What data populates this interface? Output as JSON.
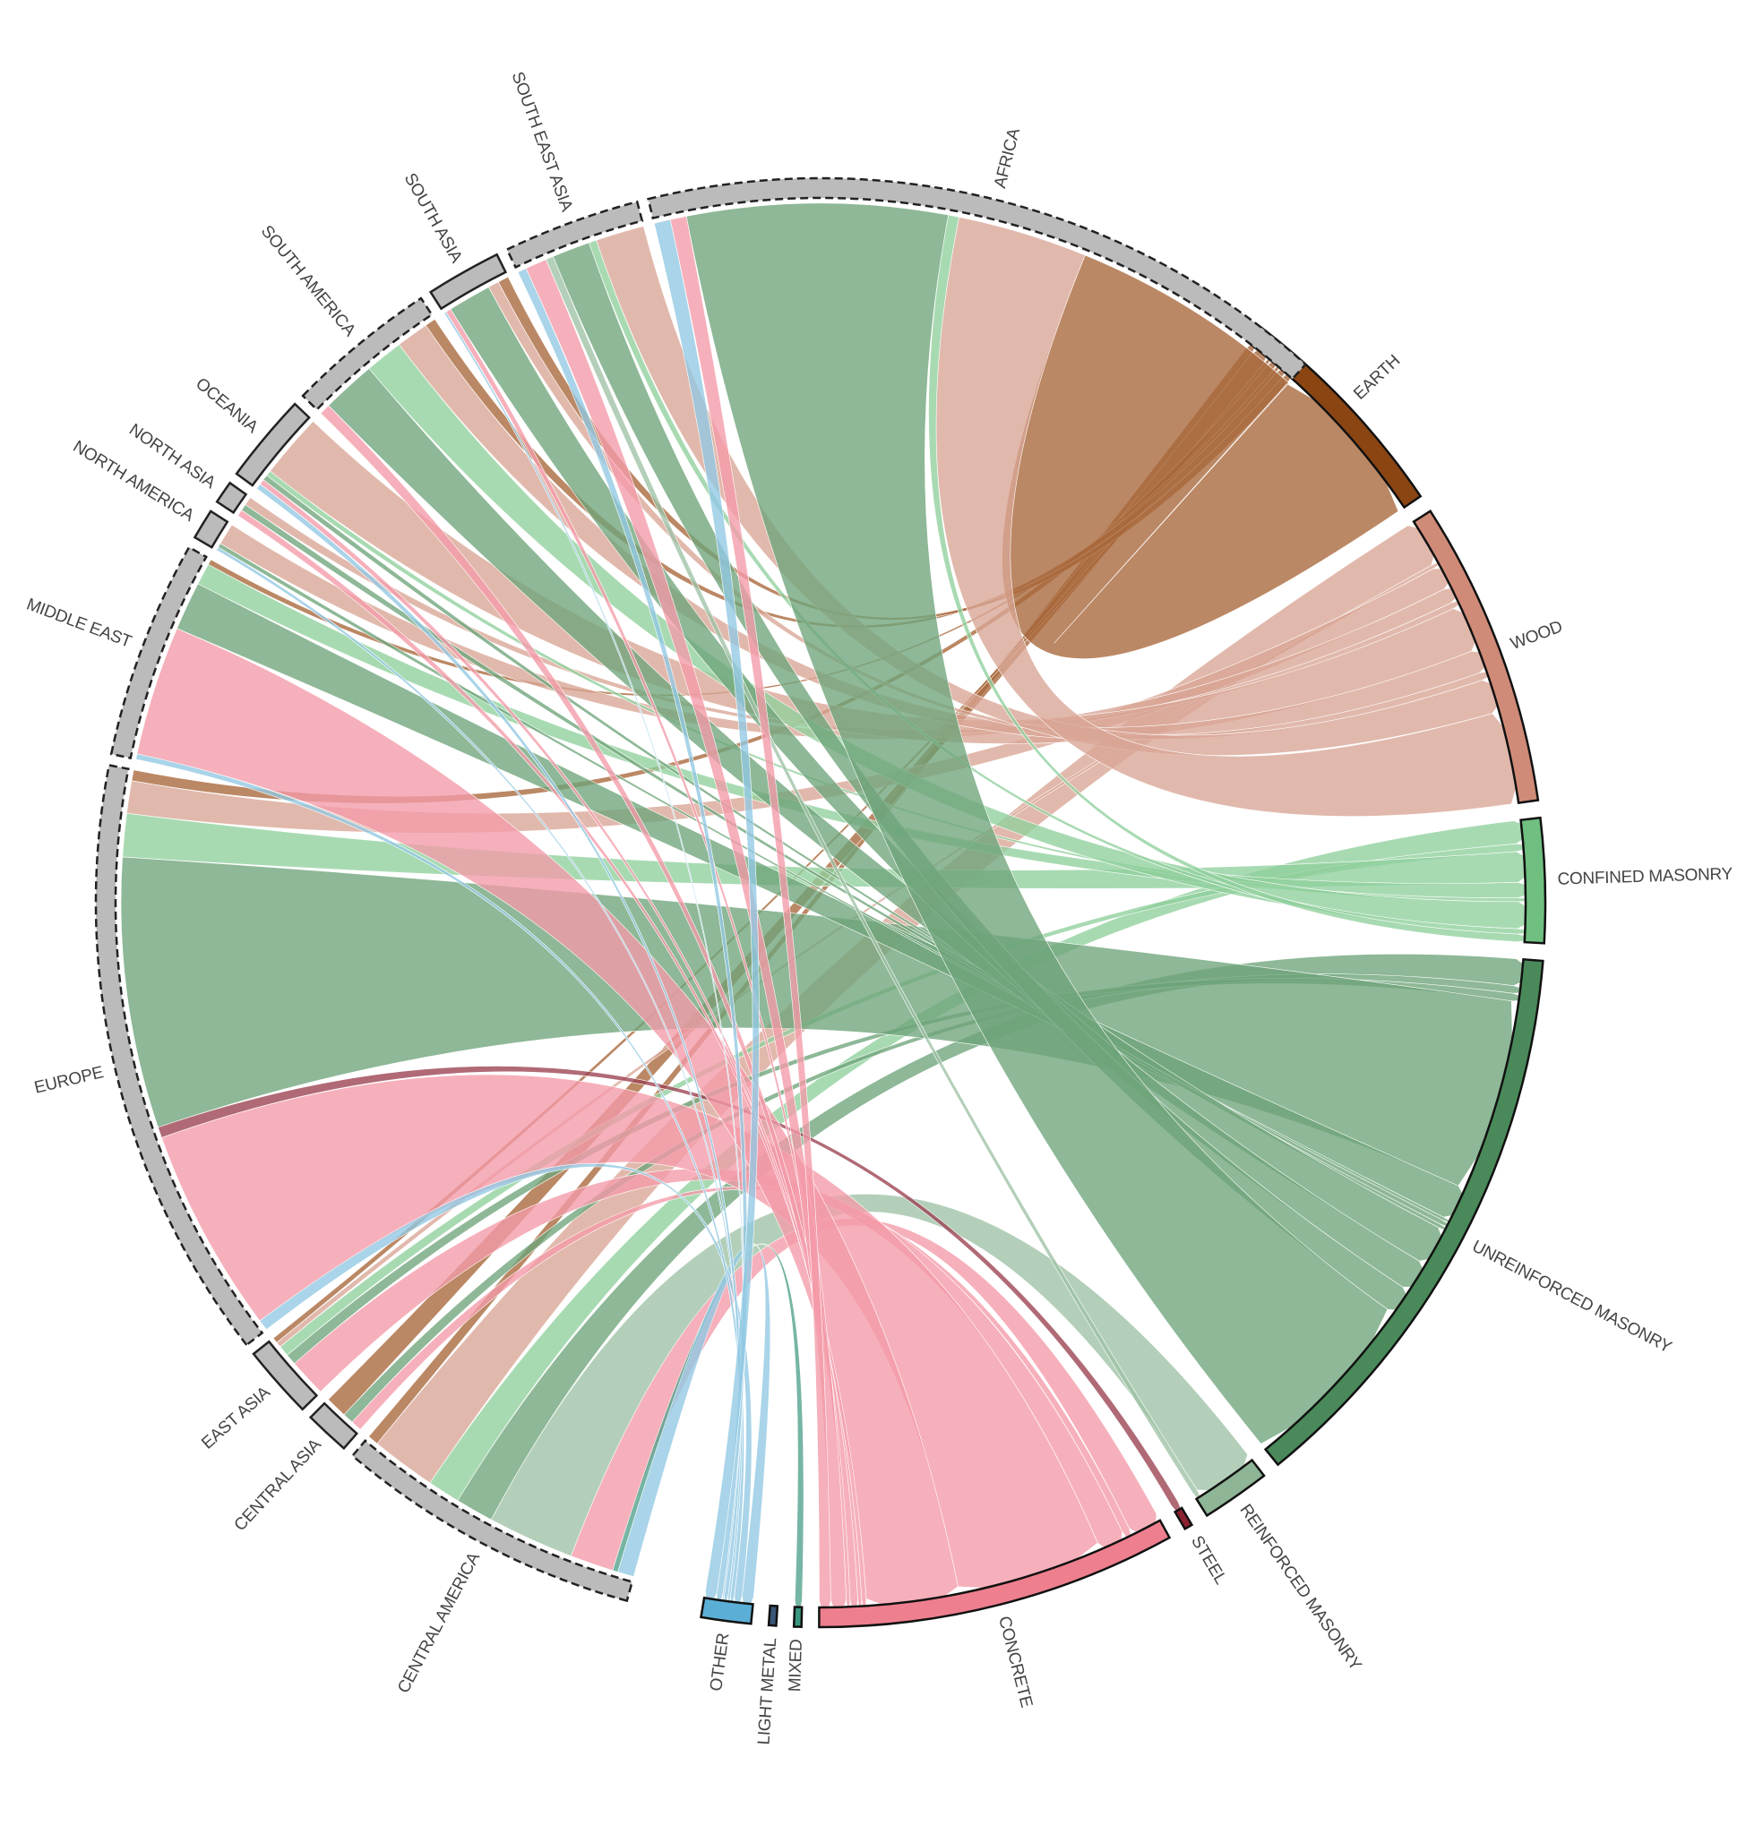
{
  "chart_data": {
    "type": "chord",
    "title": "",
    "regions": [
      {
        "name": "AFRICA",
        "flows": {
          "EARTH": 22,
          "WOOD": 12,
          "CONFINED MASONRY": 1,
          "UNREINFORCED MASONRY": 24,
          "CONCRETE": 1.5,
          "OTHER": 1.5
        }
      },
      {
        "name": "SOUTH EAST ASIA",
        "flows": {
          "WOOD": 4.5,
          "CONFINED MASONRY": 0.7,
          "UNREINFORCED MASONRY": 3.5,
          "CONCRETE": 2,
          "REINFORCED MASONRY": 0.7,
          "OTHER": 0.8
        }
      },
      {
        "name": "SOUTH ASIA",
        "flows": {
          "EARTH": 1,
          "WOOD": 1,
          "UNREINFORCED MASONRY": 4,
          "CONCRETE": 0.5,
          "OTHER": 0.2
        }
      },
      {
        "name": "SOUTH AMERICA",
        "flows": {
          "EARTH": 1,
          "WOOD": 3,
          "CONFINED MASONRY": 3.5,
          "UNREINFORCED MASONRY": 5,
          "CONCRETE": 1
        }
      },
      {
        "name": "OCEANIA",
        "flows": {
          "WOOD": 6,
          "CONFINED MASONRY": 0.5,
          "UNREINFORCED MASONRY": 0.5,
          "CONCRETE": 0.5,
          "OTHER": 0.5
        }
      },
      {
        "name": "NORTH ASIA",
        "flows": {
          "WOOD": 0.8,
          "UNREINFORCED MASONRY": 0.6,
          "CONCRETE": 0.6
        }
      },
      {
        "name": "NORTH AMERICA",
        "flows": {
          "WOOD": 2,
          "UNREINFORCED MASONRY": 0.4,
          "OTHER": 0.3
        }
      },
      {
        "name": "MIDDLE EAST",
        "flows": {
          "EARTH": 0.5,
          "CONFINED MASONRY": 2,
          "UNREINFORCED MASONRY": 4.5,
          "CONCRETE": 12,
          "OTHER": 0.5
        }
      },
      {
        "name": "EUROPE",
        "flows": {
          "EARTH": 1,
          "WOOD": 3,
          "CONFINED MASONRY": 4,
          "UNREINFORCED MASONRY": 25,
          "CONCRETE": 19,
          "STEEL": 1,
          "OTHER": 1
        }
      },
      {
        "name": "EAST ASIA",
        "flows": {
          "EARTH": 0.5,
          "WOOD": 0.5,
          "CONFINED MASONRY": 1,
          "UNREINFORCED MASONRY": 1,
          "CONCRETE": 3.5
        }
      },
      {
        "name": "CENTRAL ASIA",
        "flows": {
          "EARTH": 2,
          "UNREINFORCED MASONRY": 1,
          "CONCRETE": 1
        }
      },
      {
        "name": "CENTRAL AMERICA",
        "flows": {
          "EARTH": 1,
          "WOOD": 6,
          "CONFINED MASONRY": 3,
          "UNREINFORCED MASONRY": 3.5,
          "CONCRETE": 4,
          "REINFORCED MASONRY": 8,
          "MIXED": 0.5,
          "OTHER": 1.5
        }
      }
    ],
    "materials": [
      {
        "name": "EARTH",
        "color": "#8B4513"
      },
      {
        "name": "WOOD",
        "color": "#D08B78"
      },
      {
        "name": "CONFINED MASONRY",
        "color": "#6FBF80"
      },
      {
        "name": "UNREINFORCED MASONRY",
        "color": "#4A8A5A"
      },
      {
        "name": "REINFORCED MASONRY",
        "color": "#8EB596"
      },
      {
        "name": "STEEL",
        "color": "#8B2232"
      },
      {
        "name": "CONCRETE",
        "color": "#EE7F8E"
      },
      {
        "name": "MIXED",
        "color": "#3A9880"
      },
      {
        "name": "LIGHT METAL",
        "color": "#3A5577"
      },
      {
        "name": "OTHER",
        "color": "#5BAFD6"
      }
    ],
    "ribbon_colors": {
      "EARTH": "#A8663A",
      "WOOD": "#D9A595",
      "CONFINED MASONRY": "#8FCF9C",
      "UNREINFORCED MASONRY": "#6EA47A",
      "REINFORCED MASONRY": "#9EC2A5",
      "STEEL": "#9A4050",
      "CONCRETE": "#F39AA8",
      "MIXED": "#4FA08A",
      "LIGHT METAL": "#555577",
      "OTHER": "#91C8E3"
    },
    "region_color": "#BBBBBB"
  }
}
